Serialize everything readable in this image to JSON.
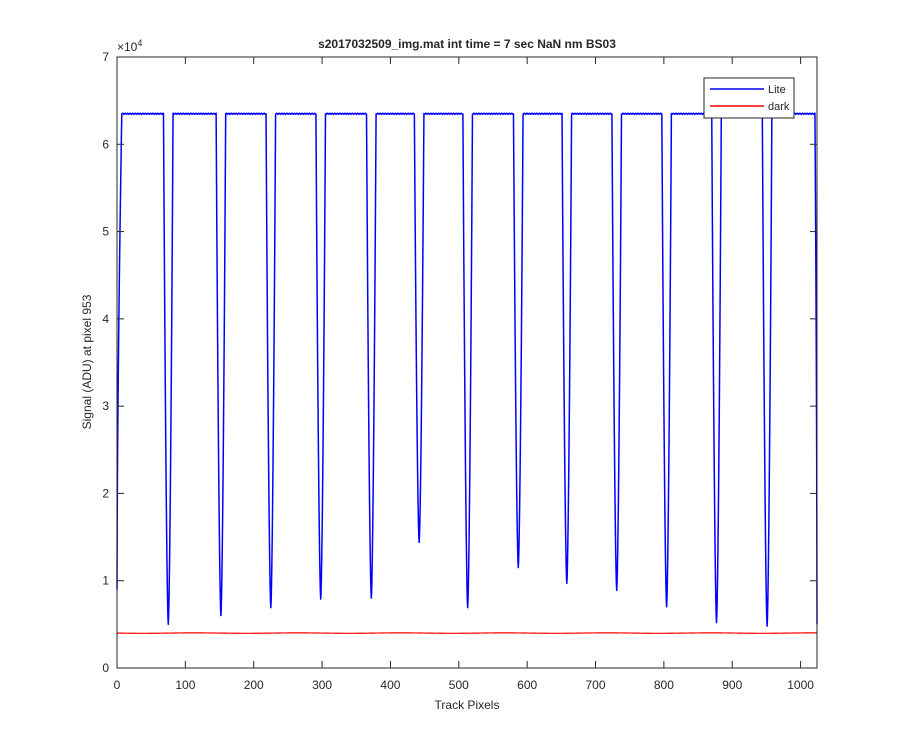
{
  "chart_data": {
    "type": "line",
    "title": "s2017032509_img.mat int time = 7 sec  NaN nm BS03",
    "xlabel": "Track Pixels",
    "ylabel": "Signal (ADU) at pixel 953",
    "y_exponent_label": "×10",
    "y_exponent_power": "4",
    "xlim": [
      0,
      1024
    ],
    "ylim": [
      0,
      70000
    ],
    "x_ticks": [
      0,
      100,
      200,
      300,
      400,
      500,
      600,
      700,
      800,
      900,
      1000
    ],
    "y_ticks": [
      0,
      10000,
      20000,
      30000,
      40000,
      50000,
      60000,
      70000
    ],
    "x_tick_labels": [
      "0",
      "100",
      "200",
      "300",
      "400",
      "500",
      "600",
      "700",
      "800",
      "900",
      "1000"
    ],
    "y_tick_labels": [
      "0",
      "1",
      "2",
      "3",
      "4",
      "5",
      "6",
      "7"
    ],
    "grid": false,
    "legend_position": "top-right",
    "series": [
      {
        "name": "Lite",
        "color": "#0000ff",
        "plateau": 63500,
        "start_value": 9000,
        "dips": [
          {
            "x": 75,
            "min": 5000
          },
          {
            "x": 152,
            "min": 6000
          },
          {
            "x": 225,
            "min": 6900
          },
          {
            "x": 298,
            "min": 7900
          },
          {
            "x": 372,
            "min": 8000
          },
          {
            "x": 442,
            "min": 14400
          },
          {
            "x": 513,
            "min": 6900
          },
          {
            "x": 587,
            "min": 11500
          },
          {
            "x": 658,
            "min": 9700
          },
          {
            "x": 731,
            "min": 8900
          },
          {
            "x": 804,
            "min": 7000
          },
          {
            "x": 877,
            "min": 5200
          },
          {
            "x": 951,
            "min": 4800
          }
        ],
        "end_value": 5000
      },
      {
        "name": "dark",
        "color": "#ff0000",
        "constant": 4000
      }
    ]
  }
}
